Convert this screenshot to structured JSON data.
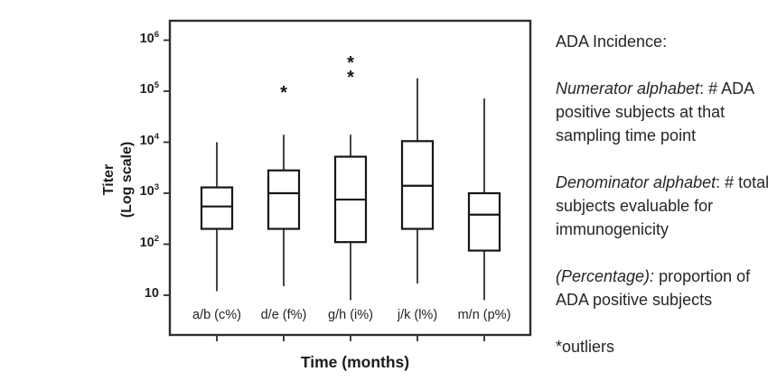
{
  "chart_data": {
    "type": "boxplot",
    "title": "",
    "xlabel": "Time (months)",
    "ylabel_line1": "Titer",
    "ylabel_line2": "(Log scale)",
    "yscale": "log",
    "ylim": [
      7,
      2300000
    ],
    "grid": false,
    "outlier_marker": "*",
    "box_fill": "#ffffff",
    "line_color": "#161616",
    "frame_color": "#2e2e2e",
    "yticks": [
      {
        "value": 1000000,
        "base": "10",
        "exp": "6"
      },
      {
        "value": 100000,
        "base": "10",
        "exp": "5"
      },
      {
        "value": 10000,
        "base": "10",
        "exp": "4"
      },
      {
        "value": 1000,
        "base": "10",
        "exp": "3"
      },
      {
        "value": 100,
        "base": "10",
        "exp": "2"
      },
      {
        "value": 10,
        "base": "10",
        "exp": ""
      }
    ],
    "series": [
      {
        "label": "a/b (c%)",
        "whisker_low": 12,
        "q1": 200,
        "median": 550,
        "q3": 1300,
        "whisker_high": 10000,
        "outliers": []
      },
      {
        "label": "d/e (f%)",
        "whisker_low": 15,
        "q1": 200,
        "median": 1000,
        "q3": 2800,
        "whisker_high": 14000,
        "outliers": [
          100000
        ]
      },
      {
        "label": "g/h (i%)",
        "whisker_low": 8,
        "q1": 110,
        "median": 750,
        "q3": 5200,
        "whisker_high": 14000,
        "outliers": [
          200000,
          380000
        ]
      },
      {
        "label": "j/k (l%)",
        "whisker_low": 17,
        "q1": 200,
        "median": 1400,
        "q3": 10500,
        "whisker_high": 180000,
        "outliers": []
      },
      {
        "label": "m/n (p%)",
        "whisker_low": 8,
        "q1": 75,
        "median": 380,
        "q3": 1000,
        "whisker_high": 72000,
        "outliers": []
      }
    ]
  },
  "annotation_panel": {
    "title": "ADA Incidence:",
    "items": [
      {
        "lead": "Numerator alphabet",
        "rest": ": # ADA positive  subjects at that sampling time point"
      },
      {
        "lead": "Denominator alphabet",
        "rest": ": # total subjects evaluable for immunogenicity"
      },
      {
        "lead": "(Percentage):",
        "rest": " proportion of ADA positive subjects"
      }
    ],
    "outliers_note": "*outliers"
  }
}
